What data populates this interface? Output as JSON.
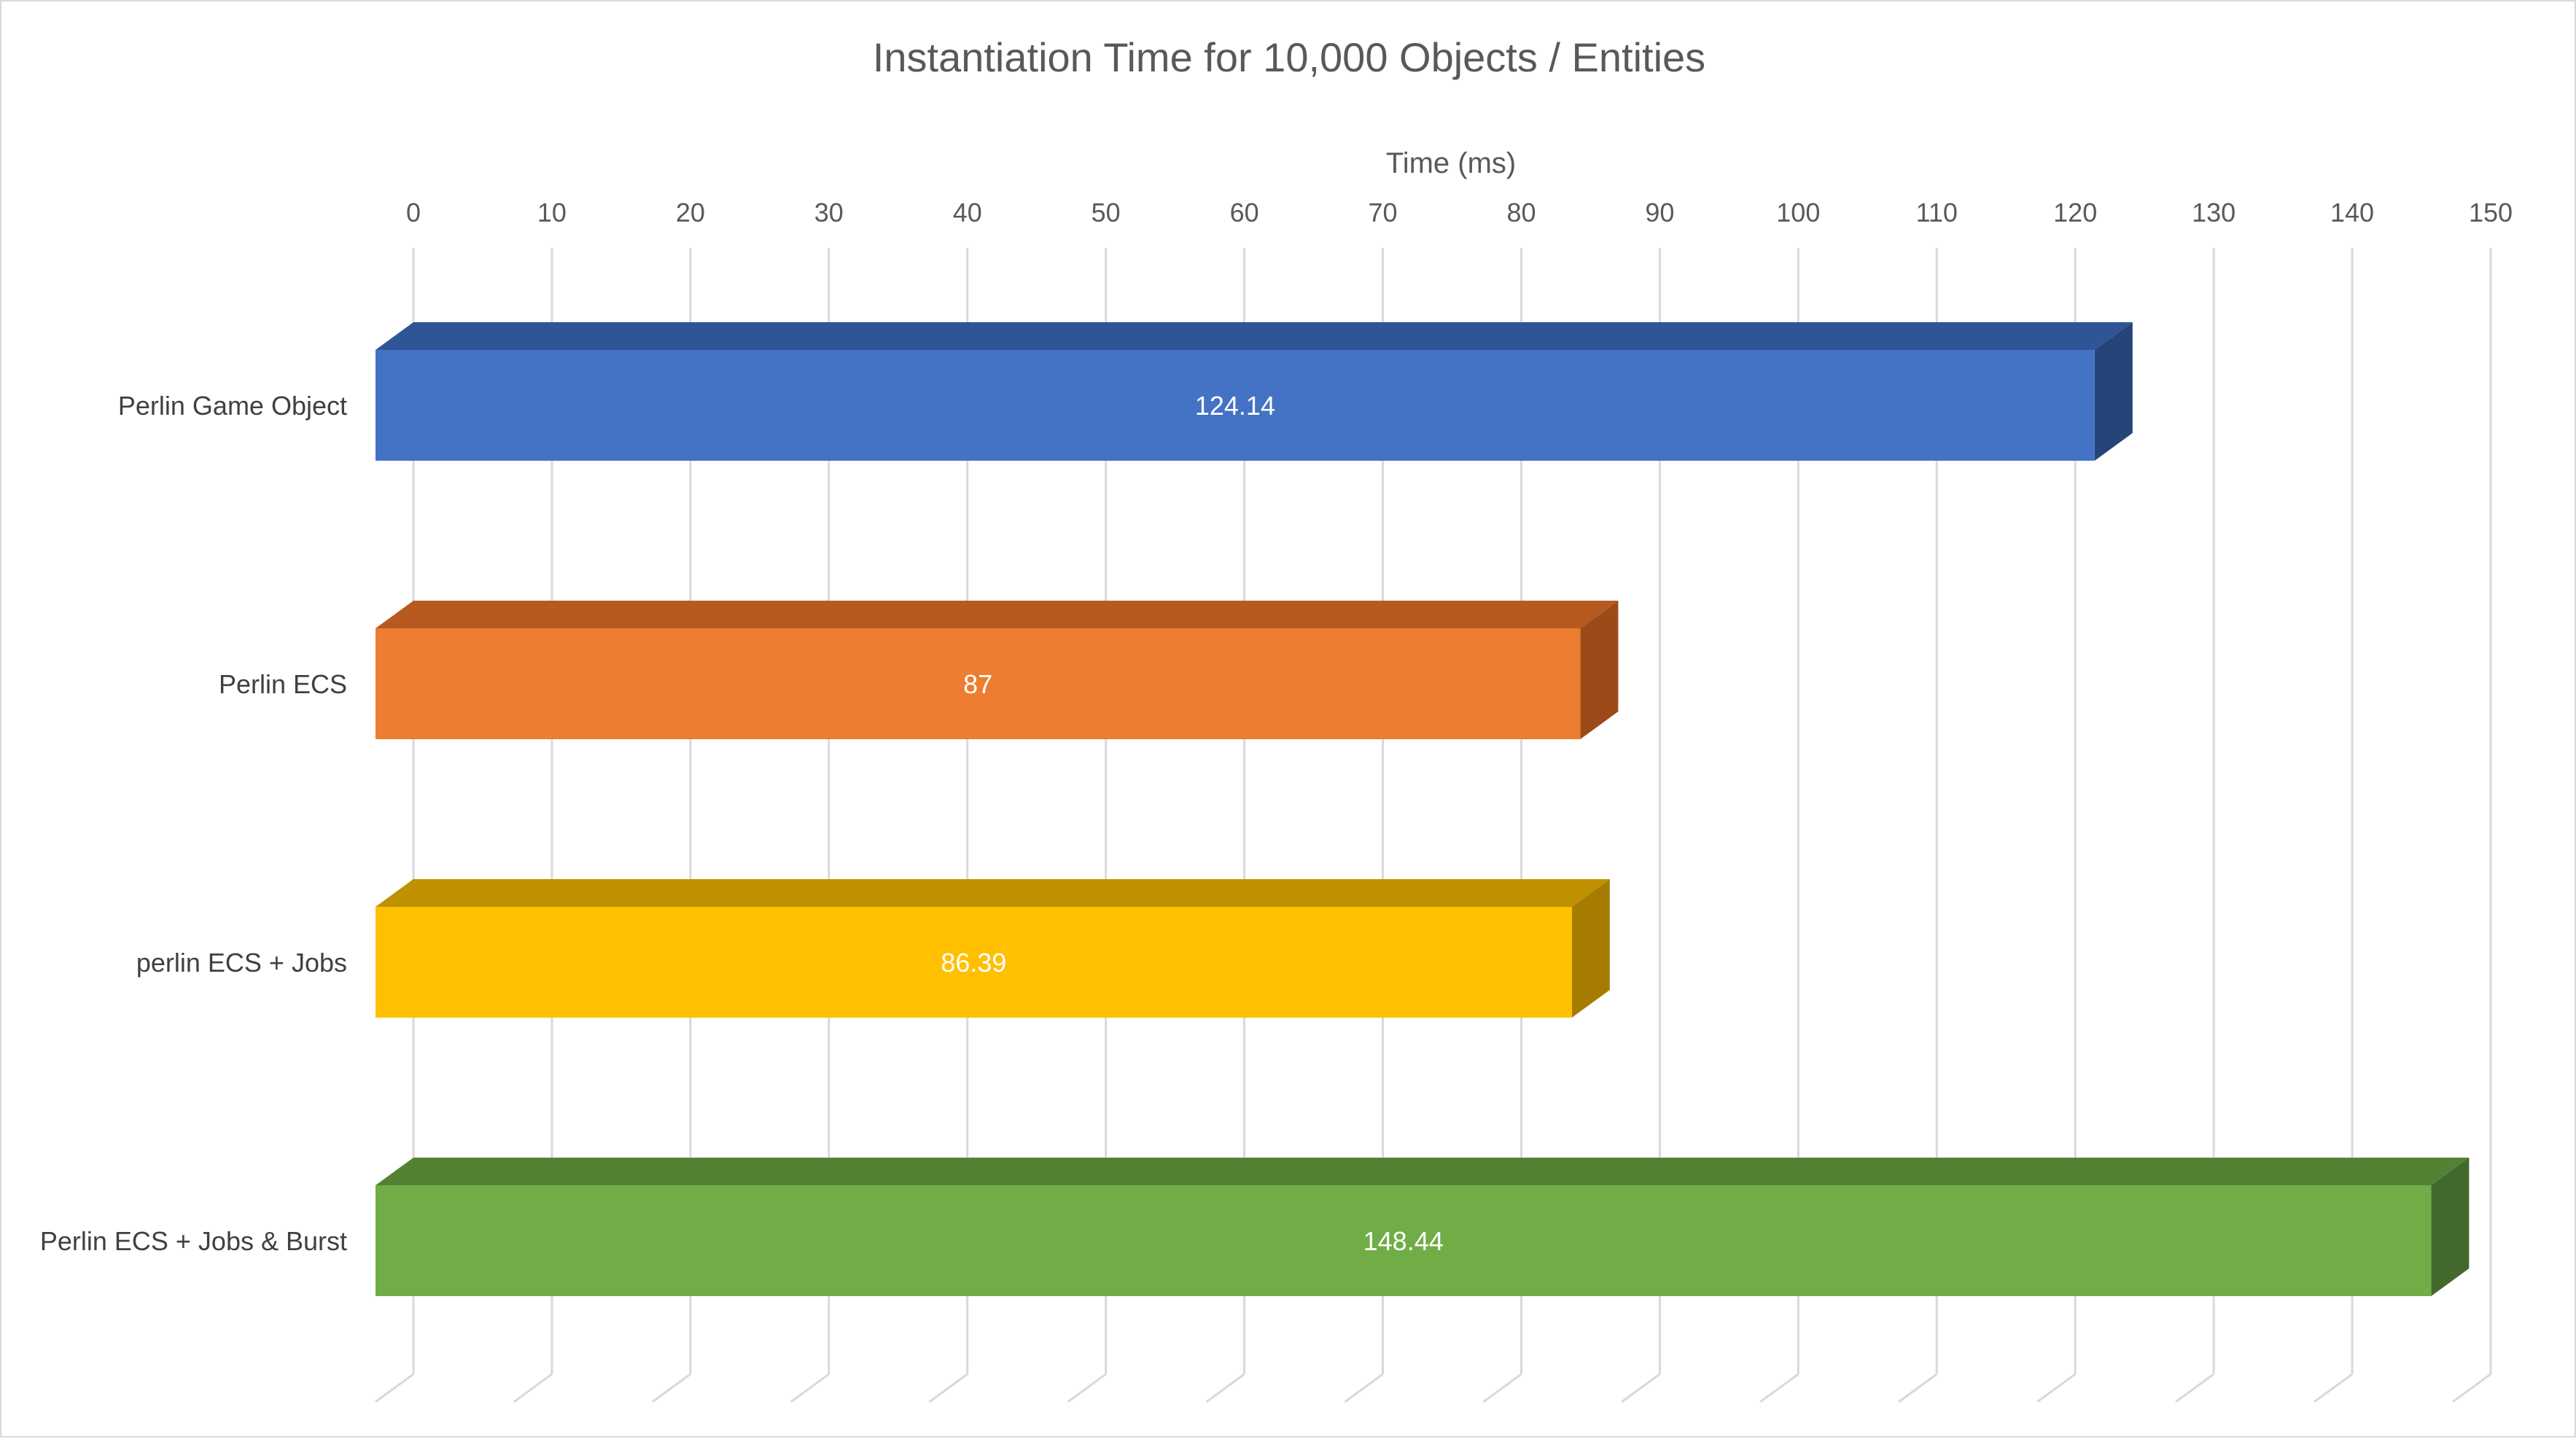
{
  "chart_data": {
    "type": "bar",
    "orientation": "horizontal",
    "title": "Instantiation Time for 10,000 Objects / Entities",
    "xlabel": "Time (ms)",
    "ylabel": "",
    "xlim": [
      0,
      150
    ],
    "tick_step": 10,
    "ticks": [
      "0",
      "10",
      "20",
      "30",
      "40",
      "50",
      "60",
      "70",
      "80",
      "90",
      "100",
      "110",
      "120",
      "130",
      "140",
      "150"
    ],
    "grid": true,
    "legend": "none",
    "style": "3d",
    "categories": [
      "Perlin Game Object",
      "Perlin ECS",
      "perlin ECS + Jobs",
      "Perlin ECS + Jobs & Burst"
    ],
    "values": [
      124.14,
      87,
      86.39,
      148.44
    ],
    "data_labels": [
      "124.14",
      "87",
      "86.39",
      "148.44"
    ],
    "colors": {
      "front": [
        "#4472C4",
        "#ED7D31",
        "#FFC000",
        "#70AD47"
      ],
      "top": [
        "#2F5597",
        "#B85A20",
        "#BF9000",
        "#548235"
      ],
      "side": [
        "#264478",
        "#9C4A18",
        "#A67C00",
        "#43682B"
      ]
    }
  }
}
